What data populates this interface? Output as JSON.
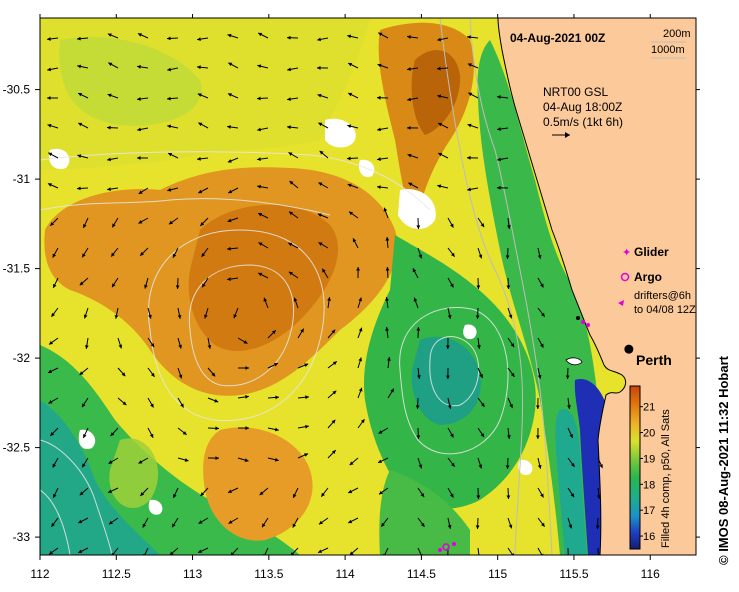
{
  "title": "04-Aug-2021 00Z",
  "contours": {
    "label_200": "200m",
    "label_1000": "1000m"
  },
  "current_info": {
    "line1": "NRT00 GSL",
    "line2": "04-Aug 18:00Z",
    "line3": "0.5m/s (1kt 6h)"
  },
  "legend": {
    "glider": "Glider",
    "argo": "Argo",
    "drifters_line1": "drifters@6h",
    "drifters_line2": "to 04/08 12Z",
    "glider_color": "#e000e0",
    "argo_color": "#e000e0"
  },
  "place": {
    "name": "Perth",
    "lon": 115.86,
    "lat": -31.95
  },
  "colorbar": {
    "caption": "Filled 4h comp, p50, All Sats",
    "ticks": [
      "21",
      "20",
      "19",
      "18",
      "17",
      "16"
    ],
    "values": [
      21,
      20,
      19,
      18,
      17,
      16
    ],
    "min": 15.5,
    "max": 21.8
  },
  "side_caption": "© IMOS 08-Aug-2021 11:32 Hobart",
  "axes": {
    "lon_ticks": [
      "112",
      "112.5",
      "113",
      "113.5",
      "114",
      "114.5",
      "115",
      "115.5",
      "116"
    ],
    "lon_values": [
      112,
      112.5,
      113,
      113.5,
      114,
      114.5,
      115,
      115.5,
      116
    ],
    "lat_ticks": [
      "-30.5",
      "-31",
      "-31.5",
      "-32",
      "-32.5",
      "-33"
    ],
    "lat_values": [
      -30.5,
      -31,
      -31.5,
      -32,
      -32.5,
      -33
    ],
    "lon_range": [
      112,
      116.3
    ],
    "lat_range": [
      -33.1,
      -30.1
    ]
  },
  "colors": {
    "land": "#fcc99a",
    "warm": "#d58500",
    "orange": "#e89d1b",
    "yellow": "#e7e22c",
    "lightgreen": "#a5d23a",
    "green": "#2fb548",
    "teal": "#20a580",
    "deep": "#1e2eb5"
  }
}
